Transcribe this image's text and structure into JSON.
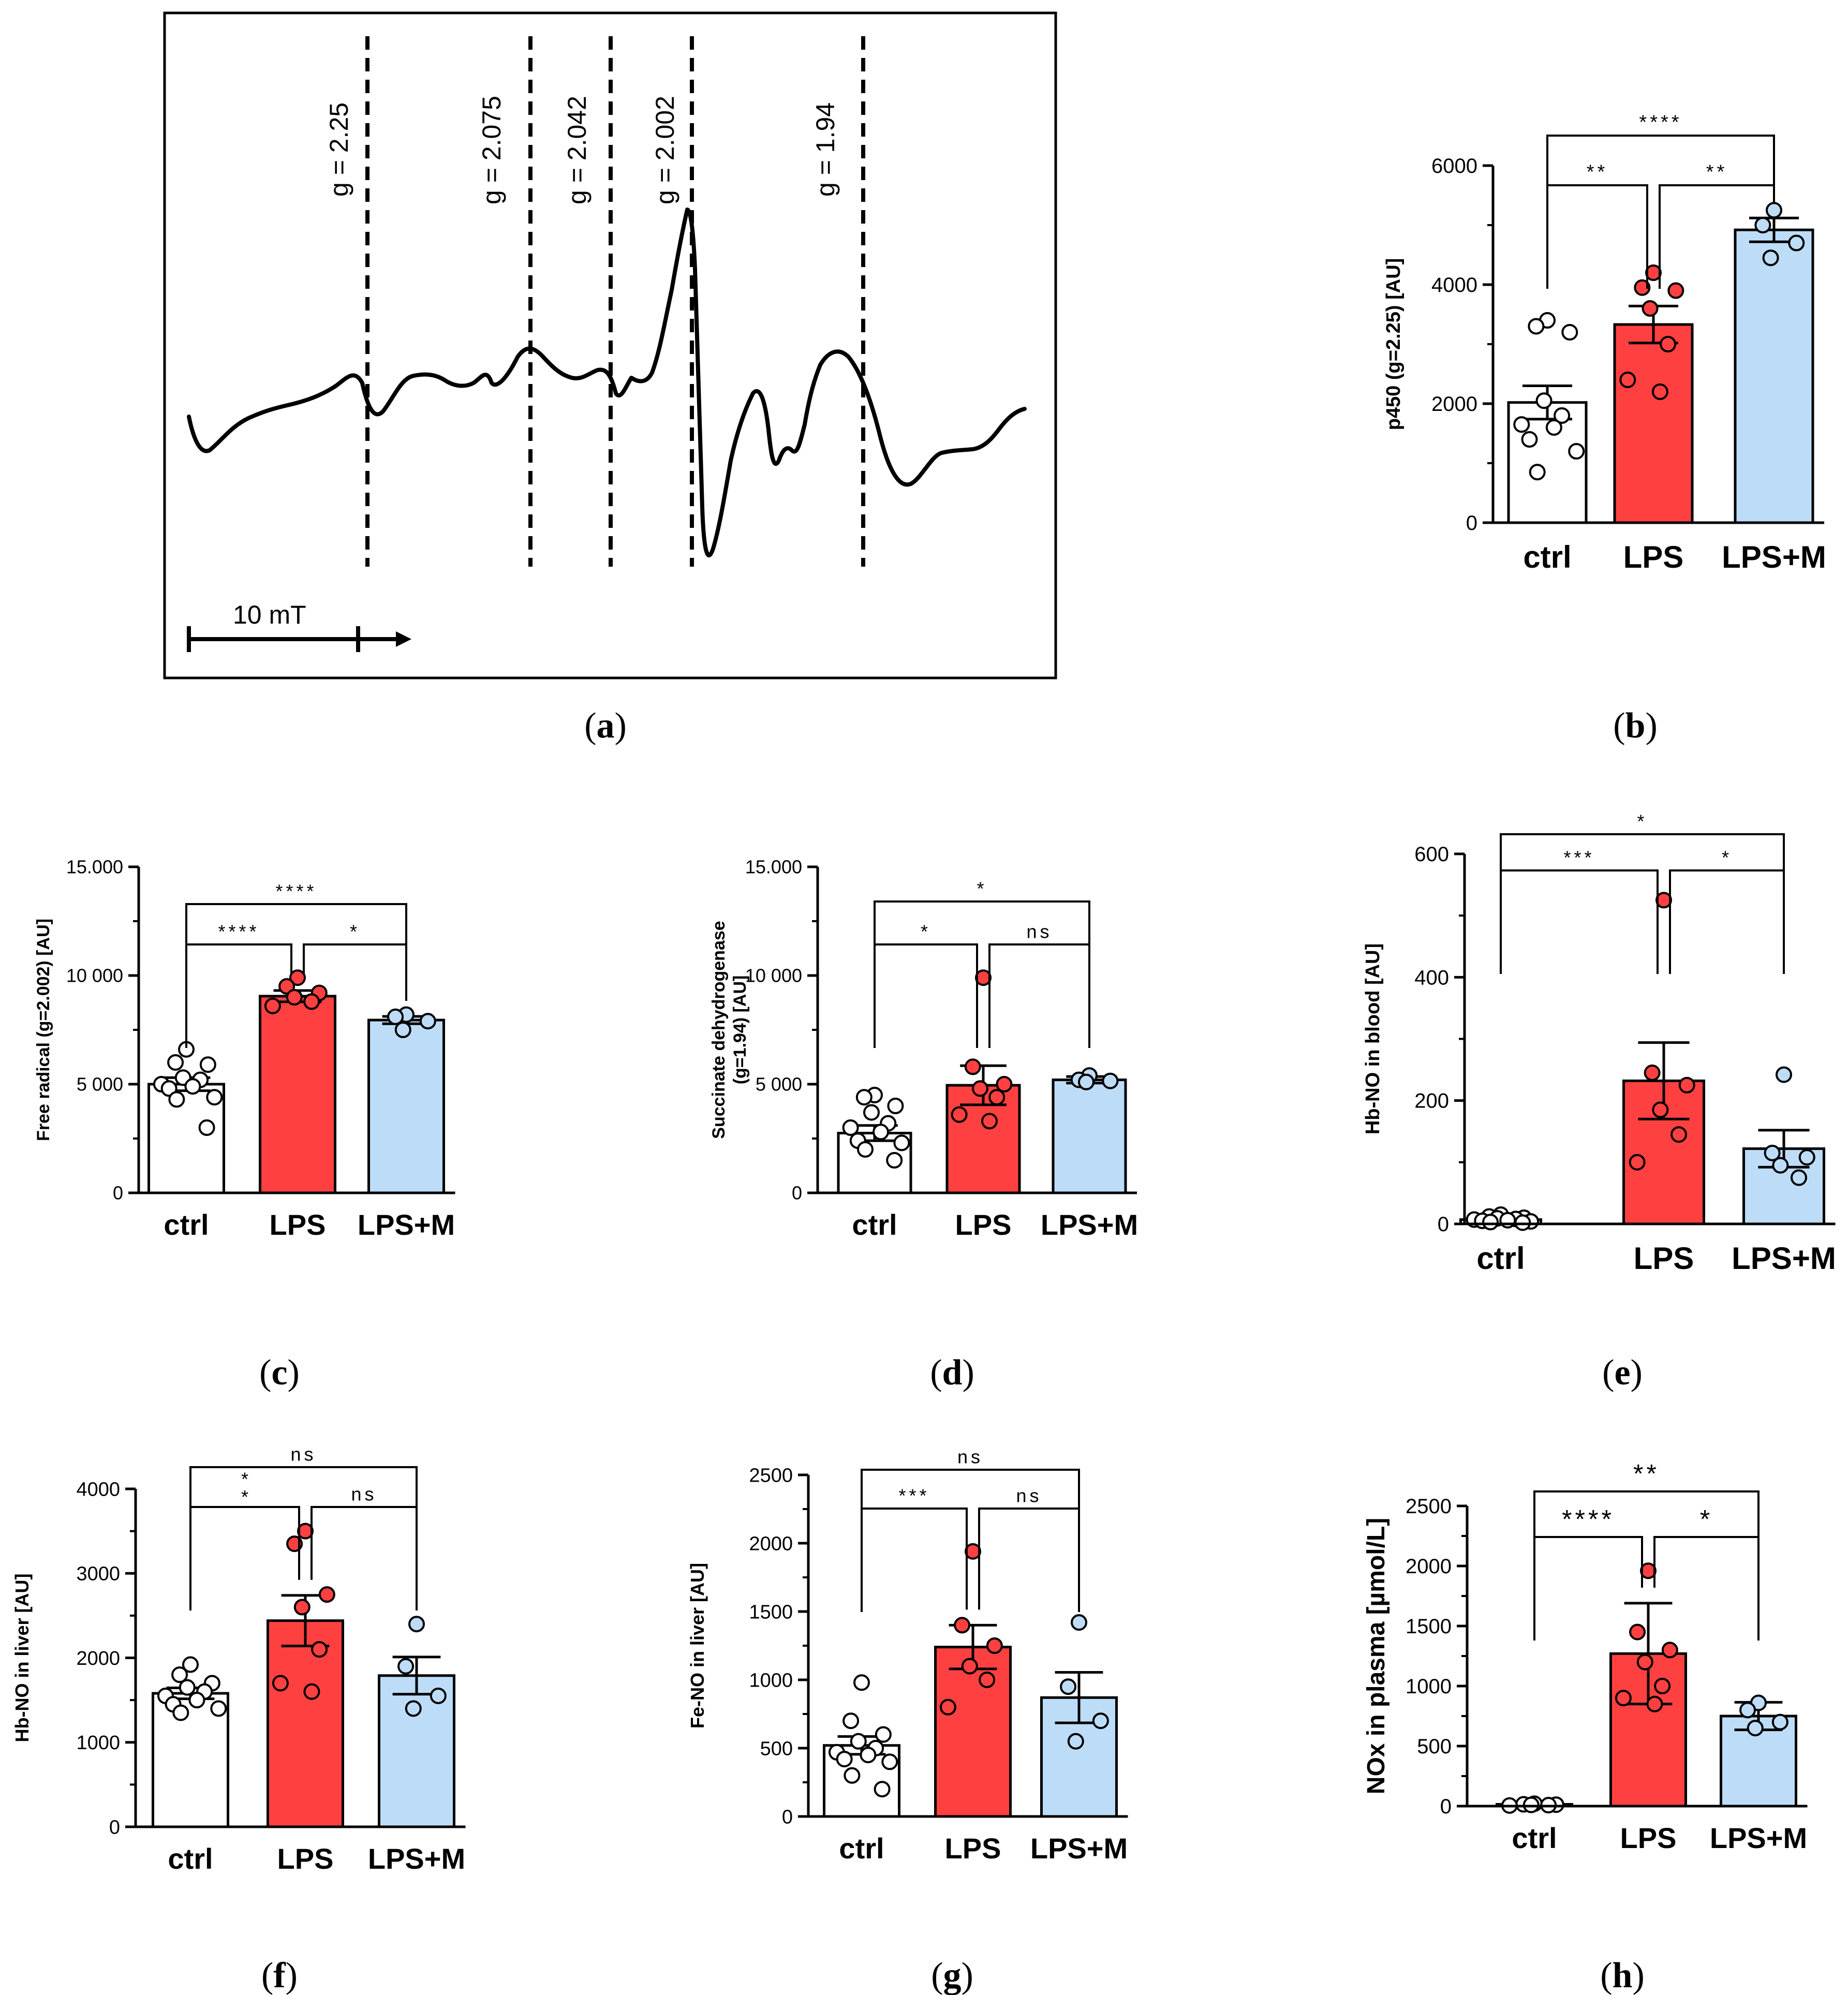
{
  "panel_labels": [
    "a",
    "b",
    "c",
    "d",
    "e",
    "f",
    "g",
    "h"
  ],
  "epr_spectrum": {
    "g_values": [
      "g = 2.25",
      "g = 2.075",
      "g = 2.042",
      "g = 2.002",
      "g = 1.94"
    ],
    "scale_bar": "10 mT"
  },
  "colors": {
    "ctrl": "#ffffff",
    "LPS": "#ff4040",
    "LPS+M": "#bddcf7",
    "stroke": "#000000"
  },
  "chart_data": [
    {
      "panel": "b",
      "type": "bar",
      "categories": [
        "ctrl",
        "LPS",
        "LPS+M"
      ],
      "ylabel": "p450 (g=2.25) [AU]",
      "ylim": [
        0,
        6000
      ],
      "yticks": [
        0,
        2000,
        4000,
        6000
      ],
      "ytick_labels": [
        "0",
        "2000",
        "4000",
        "6000"
      ],
      "means": [
        2020,
        3330,
        4920
      ],
      "sem": [
        280,
        310,
        200
      ],
      "points": [
        [
          3400,
          3300,
          3200,
          2050,
          1800,
          1650,
          1600,
          1400,
          1200,
          850
        ],
        [
          4200,
          3950,
          3900,
          3600,
          3000,
          2400,
          2200
        ],
        [
          5250,
          5000,
          4700,
          4450
        ]
      ],
      "comparisons": [
        {
          "from": 0,
          "to": 1,
          "label": "**",
          "level": 2
        },
        {
          "from": 1,
          "to": 2,
          "label": "**",
          "level": 2
        },
        {
          "from": 0,
          "to": 2,
          "label": "****",
          "level": 1
        }
      ]
    },
    {
      "panel": "c",
      "type": "bar",
      "categories": [
        "ctrl",
        "LPS",
        "LPS+M"
      ],
      "ylabel": "Free radical (g=2.002) [AU]",
      "ylim": [
        0,
        15000
      ],
      "yticks": [
        0,
        5000,
        10000,
        15000
      ],
      "ytick_labels": [
        "0",
        "5 000",
        "10 000",
        "15.000"
      ],
      "means": [
        5000,
        9050,
        7950
      ],
      "sem": [
        300,
        260,
        170
      ],
      "points": [
        [
          6600,
          6000,
          5900,
          5300,
          5200,
          5000,
          4900,
          4800,
          4400,
          4300,
          3000
        ],
        [
          9900,
          9500,
          9200,
          9000,
          8800,
          8600
        ],
        [
          8200,
          8100,
          7900,
          7500
        ]
      ],
      "comparisons": [
        {
          "from": 0,
          "to": 1,
          "label": "****",
          "level": 2
        },
        {
          "from": 1,
          "to": 2,
          "label": "*",
          "level": 2
        },
        {
          "from": 0,
          "to": 2,
          "label": "****",
          "level": 1
        }
      ]
    },
    {
      "panel": "d",
      "type": "bar",
      "categories": [
        "ctrl",
        "LPS",
        "LPS+M"
      ],
      "ylabel": "Succinate dehydrogenase (g=1.94) [AU]",
      "ylabel_lines": [
        "Succinate dehydrogenase",
        "(g=1.94) [AU]"
      ],
      "ylim": [
        0,
        15000
      ],
      "yticks": [
        0,
        5000,
        10000,
        15000
      ],
      "ytick_labels": [
        "0",
        "5 000",
        "10 000",
        "15.000"
      ],
      "means": [
        2750,
        4950,
        5200
      ],
      "sem": [
        350,
        900,
        150
      ],
      "points": [
        [
          4500,
          4400,
          4000,
          3700,
          3200,
          3000,
          2800,
          2400,
          2300,
          2000,
          1500
        ],
        [
          9900,
          5800,
          5000,
          4800,
          4400,
          3600,
          3300
        ],
        [
          5400,
          5200,
          5150,
          5100
        ]
      ],
      "comparisons": [
        {
          "from": 0,
          "to": 1,
          "label": "*",
          "level": 2
        },
        {
          "from": 1,
          "to": 2,
          "label": "ns",
          "level": 2
        },
        {
          "from": 0,
          "to": 2,
          "label": "*",
          "level": 1
        }
      ]
    },
    {
      "panel": "e",
      "type": "bar",
      "categories": [
        "ctrl",
        "LPS",
        "LPS+M"
      ],
      "ylabel": "Hb-NO in blood [AU]",
      "ylim": [
        0,
        600
      ],
      "yticks": [
        0,
        200,
        400,
        600
      ],
      "ytick_labels": [
        "0",
        "200",
        "400",
        "600"
      ],
      "means": [
        7,
        232,
        122
      ],
      "sem": [
        2,
        62,
        30
      ],
      "points": [
        [
          15,
          12,
          10,
          9,
          8,
          7,
          6,
          5,
          4,
          3,
          2
        ],
        [
          525,
          245,
          225,
          185,
          145,
          100
        ],
        [
          242,
          115,
          108,
          95,
          75
        ]
      ],
      "comparisons": [
        {
          "from": 0,
          "to": 1,
          "label": "***",
          "level": 2
        },
        {
          "from": 1,
          "to": 2,
          "label": "*",
          "level": 2
        },
        {
          "from": 0,
          "to": 2,
          "label": "*",
          "level": 1
        }
      ]
    },
    {
      "panel": "f",
      "type": "bar",
      "categories": [
        "ctrl",
        "LPS",
        "LPS+M"
      ],
      "ylabel": "Hb-NO in liver [AU]",
      "ylim": [
        0,
        4000
      ],
      "yticks": [
        0,
        1000,
        2000,
        3000,
        4000
      ],
      "ytick_labels": [
        "0",
        "1000",
        "2000",
        "3000",
        "4000"
      ],
      "means": [
        1580,
        2440,
        1790
      ],
      "sem": [
        65,
        300,
        220
      ],
      "points": [
        [
          1920,
          1800,
          1700,
          1650,
          1600,
          1550,
          1500,
          1450,
          1400,
          1350
        ],
        [
          3500,
          3350,
          2750,
          2600,
          2100,
          1700,
          1600
        ],
        [
          2400,
          1900,
          1550,
          1400
        ]
      ],
      "comparisons": [
        {
          "from": 0,
          "to": 1,
          "label": "**",
          "level": 2,
          "stacked": true
        },
        {
          "from": 1,
          "to": 2,
          "label": "ns",
          "level": 2
        },
        {
          "from": 0,
          "to": 2,
          "label": "ns",
          "level": 1
        }
      ]
    },
    {
      "panel": "g",
      "type": "bar",
      "categories": [
        "ctrl",
        "LPS",
        "LPS+M"
      ],
      "ylabel": "Fe-NO in liver [AU]",
      "ylim": [
        0,
        2500
      ],
      "yticks": [
        0,
        500,
        1000,
        1500,
        2000,
        2500
      ],
      "ytick_labels": [
        "0",
        "500",
        "1000",
        "1500",
        "2000",
        "2500"
      ],
      "means": [
        520,
        1240,
        870
      ],
      "sem": [
        65,
        160,
        185
      ],
      "points": [
        [
          980,
          700,
          600,
          550,
          500,
          470,
          450,
          420,
          400,
          300,
          200
        ],
        [
          1940,
          1400,
          1250,
          1100,
          1000,
          800
        ],
        [
          1420,
          950,
          700,
          550
        ]
      ],
      "comparisons": [
        {
          "from": 0,
          "to": 1,
          "label": "***",
          "level": 2
        },
        {
          "from": 1,
          "to": 2,
          "label": "ns",
          "level": 2
        },
        {
          "from": 0,
          "to": 2,
          "label": "ns",
          "level": 1
        }
      ]
    },
    {
      "panel": "h",
      "type": "bar",
      "categories": [
        "ctrl",
        "LPS",
        "LPS+M"
      ],
      "ylabel": "NOx in plasma [µmol/L]",
      "ylim": [
        0,
        2500
      ],
      "yticks": [
        0,
        500,
        1000,
        1500,
        2000,
        2500
      ],
      "ytick_labels": [
        "0",
        "500",
        "1000",
        "1500",
        "2000",
        "2500"
      ],
      "means": [
        15,
        1270,
        750
      ],
      "sem": [
        3,
        420,
        115
      ],
      "sd_whiskers": true,
      "points": [
        [
          20,
          15,
          12,
          10,
          8,
          5
        ],
        [
          1960,
          1450,
          1300,
          1200,
          1000,
          900,
          850
        ],
        [
          860,
          800,
          700,
          650
        ]
      ],
      "comparisons": [
        {
          "from": 0,
          "to": 1,
          "label": "****",
          "level": 2
        },
        {
          "from": 1,
          "to": 2,
          "label": "*",
          "level": 2
        },
        {
          "from": 0,
          "to": 2,
          "label": "**",
          "level": 1
        }
      ]
    }
  ]
}
